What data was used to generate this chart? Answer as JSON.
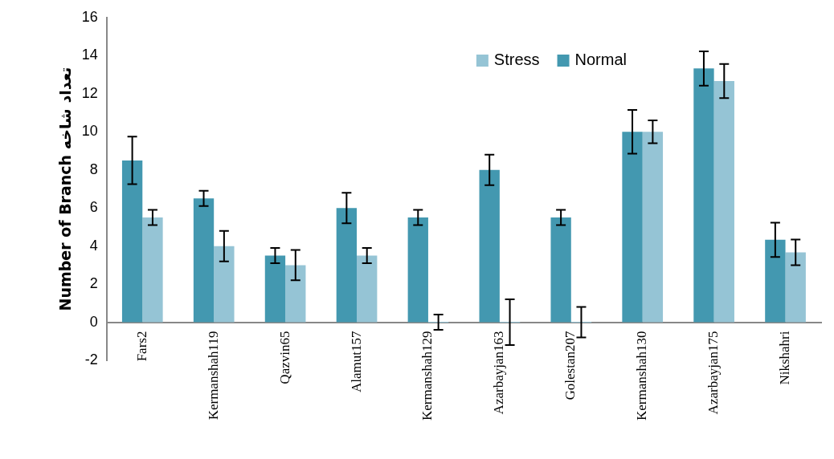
{
  "chart_data": {
    "type": "bar",
    "ylabel": "Number of Branch تعداد شاخه",
    "categories": [
      "Fars2",
      "Kermanshah119",
      "Qazvin65",
      "Alamut157",
      "Kermanshah129",
      "Azarbayjan163",
      "Golestan207",
      "Kermanshah130",
      "Azarbayjan175",
      "Nikshahri"
    ],
    "series": [
      {
        "name": "Normal",
        "color": "#4398b0",
        "values": [
          8.5,
          6.5,
          3.5,
          6,
          5.5,
          8,
          5.5,
          10,
          13.33,
          4.33
        ],
        "errors": [
          1.25,
          0.4,
          0.4,
          0.8,
          0.4,
          0.8,
          0.4,
          1.15,
          0.9,
          0.9
        ]
      },
      {
        "name": "Stress",
        "color": "#95c4d5",
        "values": [
          5.5,
          4,
          3,
          3.5,
          0,
          0,
          0,
          10,
          12.67,
          3.67
        ],
        "errors": [
          0.4,
          0.8,
          0.8,
          0.4,
          0.4,
          1.2,
          0.8,
          0.6,
          0.9,
          0.67
        ]
      }
    ],
    "ylim": [
      -2,
      16
    ],
    "yticks": [
      -2,
      0,
      2,
      4,
      6,
      8,
      10,
      12,
      14,
      16
    ],
    "grid": false,
    "legend": "top right"
  }
}
